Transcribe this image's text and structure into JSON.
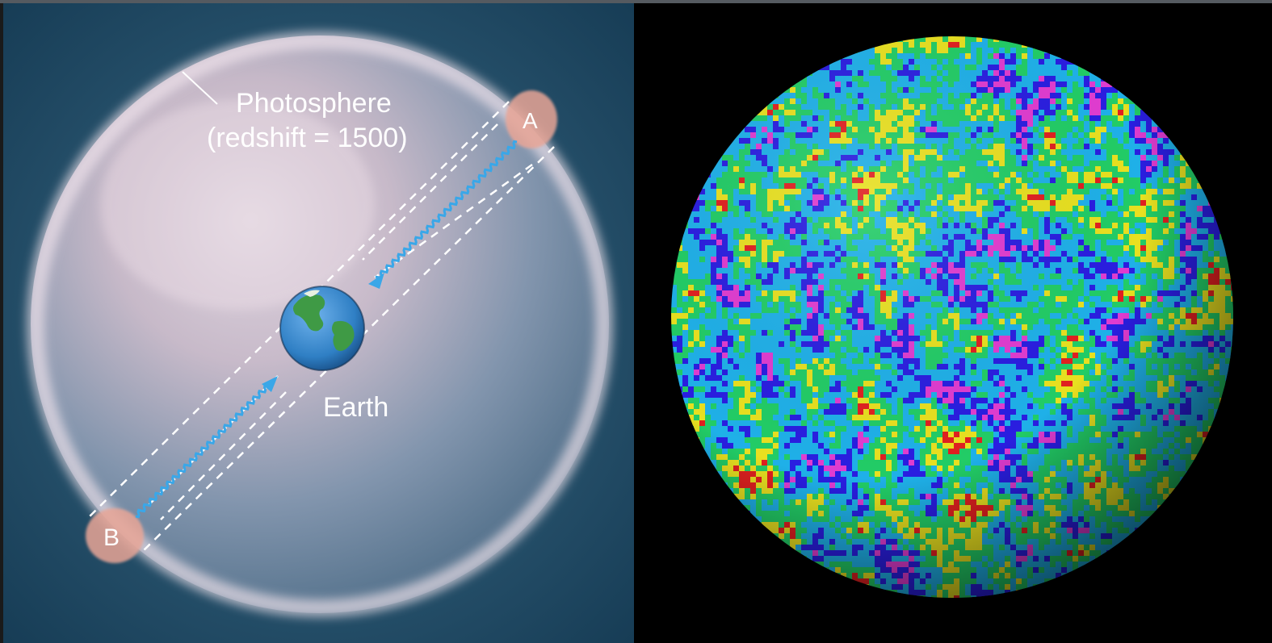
{
  "left_diagram": {
    "photosphere_label": "Photosphere",
    "redshift_label": "(redshift = 1500)",
    "earth_label": "Earth",
    "point_a_label": "A",
    "point_b_label": "B",
    "colors": {
      "background": "#1e4a66",
      "shell": "#e9d6e2",
      "earth_ocean": "#2f7fc4",
      "earth_land": "#3f9a45",
      "photon_path": "#3aa7e8",
      "blob": "#e8a596"
    },
    "icons": [
      "earth-icon",
      "photon-wave-icon"
    ]
  },
  "right_diagram": {
    "colors": {
      "background": "#000000",
      "map_scale": [
        "#e03cd0",
        "#2a1ee0",
        "#1fb0e8",
        "#22cc66",
        "#e8e020",
        "#e02020"
      ]
    }
  }
}
